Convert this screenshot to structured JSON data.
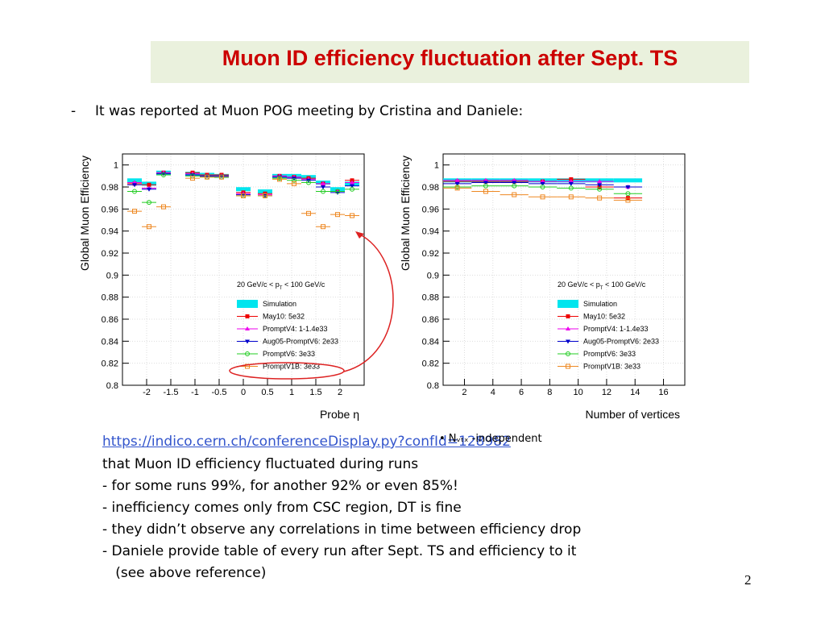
{
  "slide": {
    "title": "Muon ID efficiency fluctuation after Sept. TS",
    "bullet_dash": "-",
    "bullet_text": "It was reported at Muon POG meeting by Cristina and Daniele:",
    "link": "https://indico.cern.ch/conferenceDisplay.py?confId=128982",
    "overlay_text": "•  Nᵥₜₓ -independent",
    "lines": [
      "that Muon ID efficiency fluctuated during runs",
      "- for some runs 99%, for another 92% or even 85%!",
      "- inefficiency comes only from CSC region, DT is fine",
      "- they didn’t observe any correlations in time between efficiency drop",
      "- Daniele provide table of every run after Sept. TS and efficiency to it",
      "   (see above reference)"
    ],
    "page_number": "2"
  },
  "colors": {
    "title": "#cc0000",
    "title_bg": "#eaf1dd",
    "link": "#3355cc",
    "annotation": "#dd2222"
  },
  "chart_data": [
    {
      "type": "scatter",
      "xlabel": "Probe η",
      "ylabel": "Global Muon Efficiency",
      "xlim": [
        -2.5,
        2.5
      ],
      "ylim": [
        0.8,
        1.01
      ],
      "xticks": [
        "-2",
        "-1.5",
        "-1",
        "-0.5",
        "0",
        "0.5",
        "1",
        "1.5",
        "2"
      ],
      "yticks": [
        "0.8",
        "0.82",
        "0.84",
        "0.86",
        "0.88",
        "0.9",
        "0.92",
        "0.94",
        "0.96",
        "0.98",
        "1"
      ],
      "legend_header": "20 GeV/c < p_T < 100 GeV/c",
      "legend_position": "bottom-right",
      "x": [
        -2.25,
        -1.95,
        -1.65,
        -1.05,
        -0.75,
        -0.45,
        0.0,
        0.45,
        0.75,
        1.05,
        1.35,
        1.65,
        1.95,
        2.25
      ],
      "series": [
        {
          "name": "Simulation",
          "color": "#00e5ee",
          "values": [
            0.986,
            0.983,
            0.993,
            0.992,
            0.991,
            0.99,
            0.978,
            0.976,
            0.99,
            0.99,
            0.989,
            0.984,
            0.978,
            0.983
          ]
        },
        {
          "name": "May10: 5e32",
          "color": "#ee0000",
          "values": [
            0.983,
            0.982,
            0.993,
            0.993,
            0.991,
            0.991,
            0.975,
            0.974,
            0.99,
            0.989,
            0.988,
            0.983,
            0.976,
            0.986
          ]
        },
        {
          "name": "PromptV4: 1-1.4e33",
          "color": "#ee00ee",
          "values": [
            0.984,
            0.979,
            0.993,
            0.992,
            0.99,
            0.99,
            0.974,
            0.973,
            0.99,
            0.989,
            0.987,
            0.983,
            0.976,
            0.984
          ]
        },
        {
          "name": "Aug05-PromptV6: 2e33",
          "color": "#0000cc",
          "values": [
            0.982,
            0.978,
            0.992,
            0.991,
            0.99,
            0.99,
            0.973,
            0.972,
            0.989,
            0.988,
            0.986,
            0.98,
            0.975,
            0.981
          ]
        },
        {
          "name": "PromptV6: 3e33",
          "color": "#22cc22",
          "values": [
            0.976,
            0.966,
            0.991,
            0.99,
            0.989,
            0.989,
            0.972,
            0.972,
            0.988,
            0.986,
            0.984,
            0.976,
            0.976,
            0.978
          ]
        },
        {
          "name": "PromptV1B: 3e33",
          "color": "#ee8822",
          "values": [
            0.958,
            0.944,
            0.962,
            0.988,
            0.989,
            0.989,
            0.972,
            0.972,
            0.987,
            0.983,
            0.956,
            0.944,
            0.955,
            0.954
          ]
        }
      ]
    },
    {
      "type": "scatter",
      "xlabel": "Number of vertices",
      "ylabel": "Global Muon Efficiency",
      "xlim": [
        0.5,
        17.5
      ],
      "ylim": [
        0.8,
        1.01
      ],
      "xticks": [
        "2",
        "4",
        "6",
        "8",
        "10",
        "12",
        "14",
        "16"
      ],
      "yticks": [
        "0.8",
        "0.82",
        "0.84",
        "0.86",
        "0.88",
        "0.9",
        "0.92",
        "0.94",
        "0.96",
        "0.98",
        "1"
      ],
      "legend_header": "20 GeV/c < p_T < 100 GeV/c",
      "legend_position": "bottom-right",
      "x": [
        1.5,
        3.5,
        5.5,
        7.5,
        9.5,
        11.5,
        13.5
      ],
      "series": [
        {
          "name": "Simulation",
          "color": "#00e5ee",
          "values": [
            0.986,
            0.986,
            0.986,
            0.986,
            0.986,
            0.986,
            0.986
          ]
        },
        {
          "name": "May10: 5e32",
          "color": "#ee0000",
          "values": [
            0.985,
            0.985,
            0.985,
            0.985,
            0.987,
            0.98,
            0.97
          ]
        },
        {
          "name": "PromptV4: 1-1.4e33",
          "color": "#ee00ee",
          "values": [
            0.986,
            0.986,
            0.986,
            0.985,
            0.985,
            0.985,
            0.98
          ]
        },
        {
          "name": "Aug05-PromptV6: 2e33",
          "color": "#0000cc",
          "values": [
            0.983,
            0.984,
            0.984,
            0.983,
            0.983,
            0.982,
            0.98
          ]
        },
        {
          "name": "PromptV6: 3e33",
          "color": "#22cc22",
          "values": [
            0.98,
            0.981,
            0.981,
            0.98,
            0.979,
            0.978,
            0.974
          ]
        },
        {
          "name": "PromptV1B: 3e33",
          "color": "#ee8822",
          "values": [
            0.979,
            0.976,
            0.973,
            0.971,
            0.971,
            0.97,
            0.968
          ]
        }
      ]
    }
  ]
}
